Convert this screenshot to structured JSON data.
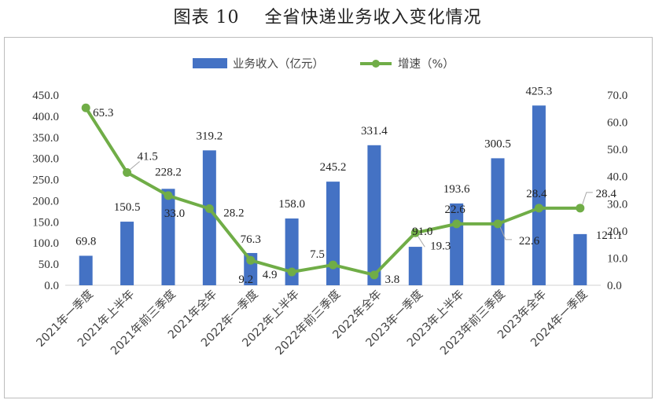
{
  "figure_title": "图表 10    全省快递业务收入变化情况",
  "chart_data": {
    "type": "bar",
    "categories": [
      "2021年一季度",
      "2021年上半年",
      "2021年前三季度",
      "2021年全年",
      "2022年一季度",
      "2022年上半年",
      "2022年前三季度",
      "2022年全年",
      "2023年一季度",
      "2023年上半年",
      "2023年前三季度",
      "2023年全年",
      "2024年一季度"
    ],
    "series": [
      {
        "name": "业务收入（亿元）",
        "type": "bar",
        "axis": "left",
        "color": "#4472c4",
        "values": [
          69.8,
          150.5,
          228.2,
          319.2,
          76.3,
          158.0,
          245.2,
          331.4,
          91.0,
          193.6,
          300.5,
          425.3,
          121.1
        ],
        "labels": [
          "69.8",
          "150.5",
          "228.2",
          "319.2",
          "76.3",
          "158.0",
          "245.2",
          "331.4",
          "91.0",
          "193.6",
          "300.5",
          "425.3",
          "121.1"
        ]
      },
      {
        "name": "增速（%）",
        "type": "line",
        "axis": "right",
        "color": "#70ad47",
        "values": [
          65.3,
          41.5,
          33.0,
          28.2,
          9.2,
          4.9,
          7.5,
          3.8,
          19.3,
          22.6,
          22.6,
          28.4,
          28.4
        ],
        "labels": [
          "65.3",
          "41.5",
          "33.0",
          "28.2",
          "9.2",
          "4.9",
          "7.5",
          "3.8",
          "19.3",
          "22.6",
          "22.6",
          "28.4",
          "28.4"
        ]
      }
    ],
    "y_left": {
      "min": 0,
      "max": 450,
      "step": 50,
      "tick_labels": [
        "0.0",
        "50.0",
        "100.0",
        "150.0",
        "200.0",
        "250.0",
        "300.0",
        "350.0",
        "400.0",
        "450.0"
      ]
    },
    "y_right": {
      "min": 0,
      "max": 70,
      "step": 10,
      "tick_labels": [
        "0.0",
        "10.0",
        "20.0",
        "30.0",
        "40.0",
        "50.0",
        "60.0",
        "70.0"
      ]
    },
    "grid": false,
    "legend_position": "top-center"
  }
}
